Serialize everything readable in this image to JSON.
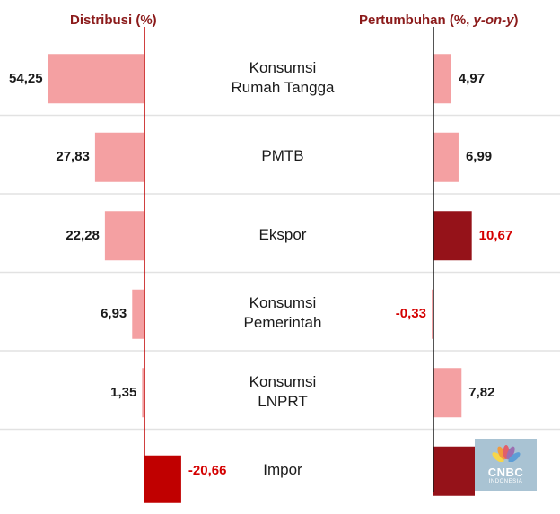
{
  "chart_data": {
    "type": "bar",
    "orientation": "horizontal",
    "title": "",
    "categories": [
      [
        "Konsumsi",
        "Rumah Tangga"
      ],
      [
        "PMTB"
      ],
      [
        "Ekspor"
      ],
      [
        "Konsumsi",
        "Pemerintah"
      ],
      [
        "Konsumsi",
        "LNPRT"
      ],
      [
        "Impor"
      ]
    ],
    "left_panel": {
      "title": "Distribusi (%)",
      "values": [
        54.25,
        27.83,
        22.28,
        6.93,
        1.35,
        -20.66
      ],
      "labels": [
        "54,25",
        "27,83",
        "22,28",
        "6,93",
        "1,35",
        "-20,66"
      ]
    },
    "right_panel": {
      "title_prefix": "Pertumbuhan (%, ",
      "title_italic": "y-on-y",
      "title_suffix": ")",
      "values": [
        4.97,
        6.99,
        10.67,
        -0.33,
        7.82,
        null
      ],
      "labels": [
        "4,97",
        "6,99",
        "10,67",
        "-0,33",
        "7,82",
        ""
      ]
    },
    "grid": true,
    "legend": "none"
  },
  "colors": {
    "bar_light": "#f4a0a2",
    "bar_dark": "#951219",
    "bar_impor_left": "#c00000",
    "axis": "#c00000",
    "header": "#8b1a1a",
    "highlight_label": "#d40000",
    "label": "#1a1a1a",
    "separator": "#e2e2e2"
  },
  "watermark": {
    "icon": "peacock-icon",
    "line1": "CNBC",
    "line2": "INDONESIA"
  }
}
